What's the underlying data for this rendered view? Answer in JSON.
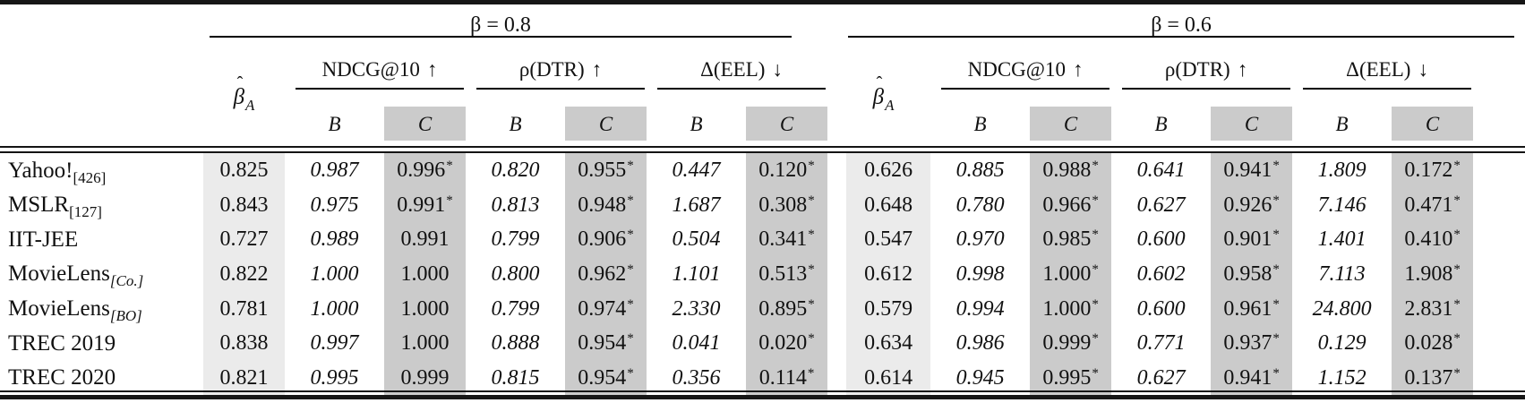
{
  "table": {
    "groups": [
      {
        "label": "β = 0.8"
      },
      {
        "label": "β = 0.6"
      }
    ],
    "beta_hat": {
      "hat": "ˆ",
      "base": "β",
      "sub": "A"
    },
    "metrics": [
      {
        "label": "NDCG@10",
        "arrow": "↑"
      },
      {
        "label": "ρ(DTR)",
        "arrow": "↑"
      },
      {
        "label": "Δ(EEL)",
        "arrow": "↓"
      }
    ],
    "sub_cols": [
      "B",
      "C"
    ],
    "colors": {
      "beta_col_bg": "#ebebeb",
      "c_col_bg": "#cbcbcb",
      "rule": "#161616"
    },
    "rows": [
      {
        "name": "Yahoo!",
        "sub": "[426]",
        "sub_italic": false,
        "values": [
          "0.825",
          "0.987",
          "0.996*",
          "0.820",
          "0.955*",
          "0.447",
          "0.120*",
          "0.626",
          "0.885",
          "0.988*",
          "0.641",
          "0.941*",
          "1.809",
          "0.172*"
        ]
      },
      {
        "name": "MSLR",
        "sub": "[127]",
        "sub_italic": false,
        "values": [
          "0.843",
          "0.975",
          "0.991*",
          "0.813",
          "0.948*",
          "1.687",
          "0.308*",
          "0.648",
          "0.780",
          "0.966*",
          "0.627",
          "0.926*",
          "7.146",
          "0.471*"
        ]
      },
      {
        "name": "IIT-JEE",
        "sub": "",
        "sub_italic": false,
        "values": [
          "0.727",
          "0.989",
          "0.991",
          "0.799",
          "0.906*",
          "0.504",
          "0.341*",
          "0.547",
          "0.970",
          "0.985*",
          "0.600",
          "0.901*",
          "1.401",
          "0.410*"
        ]
      },
      {
        "name": "MovieLens",
        "sub": "[Co.]",
        "sub_italic": true,
        "values": [
          "0.822",
          "1.000",
          "1.000",
          "0.800",
          "0.962*",
          "1.101",
          "0.513*",
          "0.612",
          "0.998",
          "1.000*",
          "0.602",
          "0.958*",
          "7.113",
          "1.908*"
        ]
      },
      {
        "name": "MovieLens",
        "sub": "[BO]",
        "sub_italic": true,
        "values": [
          "0.781",
          "1.000",
          "1.000",
          "0.799",
          "0.974*",
          "2.330",
          "0.895*",
          "0.579",
          "0.994",
          "1.000*",
          "0.600",
          "0.961*",
          "24.800",
          "2.831*"
        ]
      },
      {
        "name": "TREC 2019",
        "sub": "",
        "sub_italic": false,
        "values": [
          "0.838",
          "0.997",
          "1.000",
          "0.888",
          "0.954*",
          "0.041",
          "0.020*",
          "0.634",
          "0.986",
          "0.999*",
          "0.771",
          "0.937*",
          "0.129",
          "0.028*"
        ]
      },
      {
        "name": "TREC 2020",
        "sub": "",
        "sub_italic": false,
        "values": [
          "0.821",
          "0.995",
          "0.999",
          "0.815",
          "0.954*",
          "0.356",
          "0.114*",
          "0.614",
          "0.945",
          "0.995*",
          "0.627",
          "0.941*",
          "1.152",
          "0.137*"
        ]
      }
    ]
  }
}
